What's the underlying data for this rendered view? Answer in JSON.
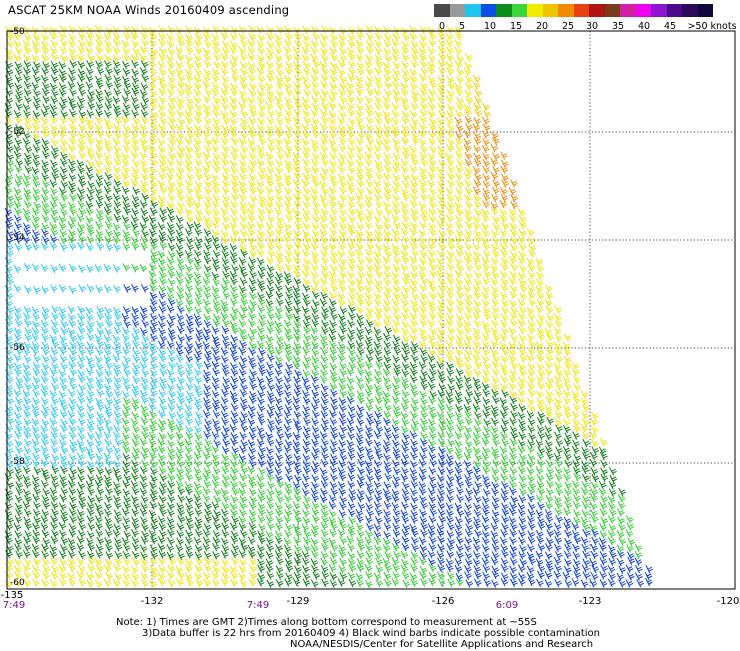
{
  "title": "ASCAT 25KM NOAA Winds 20160409 ascending",
  "legend": {
    "colors": [
      "#4a4a4a",
      "#9a9a9a",
      "#1ec6ee",
      "#0a50e8",
      "#0c8c1c",
      "#3ad63a",
      "#f0ec00",
      "#f0c200",
      "#f08a00",
      "#e84010",
      "#b01414",
      "#7a3a1c",
      "#d21ea2",
      "#f000f0",
      "#8c14d2",
      "#4a0a8a",
      "#2a0a5a",
      "#10083a"
    ],
    "labels": [
      "0",
      "5",
      "10",
      "15",
      "20",
      "25",
      "30",
      "35",
      "40",
      "45",
      ">50 knots"
    ]
  },
  "map": {
    "x_ticks": [
      "-135",
      "-132",
      "-129",
      "-126",
      "-123",
      "-120"
    ],
    "y_ticks": [
      "-50",
      "-52",
      "-54",
      "-56",
      "-58",
      "-60"
    ],
    "time_labels": [
      "7:49",
      "7:49",
      "6:09"
    ]
  },
  "notes": {
    "line1": "Note: 1) Times are GMT 2)Times along bottom correspond to measurement at ~55S",
    "line2": "3)Data buffer is 22 hrs from 20160409 4) Black wind barbs indicate possible contamination",
    "line3": "NOAA/NESDIS/Center for Satellite Applications and Research"
  }
}
